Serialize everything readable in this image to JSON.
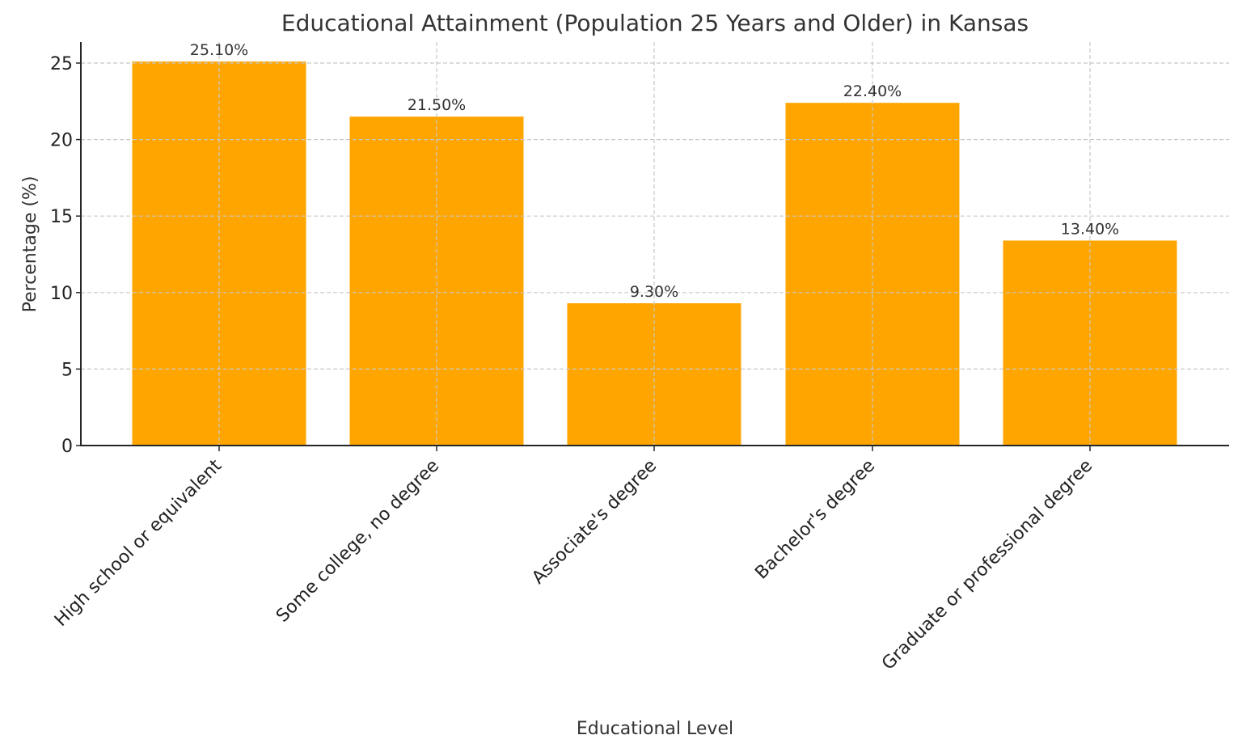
{
  "chart_data": {
    "type": "bar",
    "title": "Educational Attainment (Population 25 Years and Older) in Kansas",
    "xlabel": "Educational Level",
    "ylabel": "Percentage (%)",
    "categories": [
      "High school or equivalent",
      "Some college, no degree",
      "Associate's degree",
      "Bachelor's degree",
      "Graduate or professional degree"
    ],
    "values": [
      25.1,
      21.5,
      9.3,
      22.4,
      13.4
    ],
    "value_labels": [
      "25.10%",
      "21.50%",
      "9.30%",
      "22.40%",
      "13.40%"
    ],
    "yticks": [
      0,
      5,
      10,
      15,
      20,
      25
    ],
    "ylim": [
      0,
      26.35
    ],
    "grid": true,
    "grid_style": "dashed",
    "bar_color": "#ffa500",
    "legend": null
  }
}
